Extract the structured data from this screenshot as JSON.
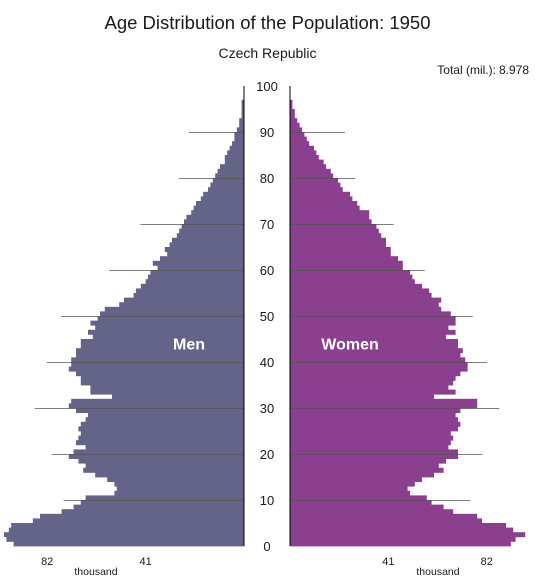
{
  "title": "Age Distribution of the Population: 1950",
  "subtitle": "Czech Republic",
  "total_label": "Total (mil.):",
  "total_value": "8.978",
  "colors": {
    "men": "#646489",
    "women": "#8a3f8f",
    "gridline": "#555555",
    "axis": "#000000",
    "label": "#ffffff"
  },
  "chart_data": {
    "type": "bar",
    "orientation": "horizontal-pyramid",
    "title": "Age Distribution of the Population: 1950",
    "subtitle": "Czech Republic",
    "age_ticks": [
      "0",
      "10",
      "20",
      "30",
      "40",
      "50",
      "60",
      "70",
      "80",
      "90",
      "100"
    ],
    "age_range": [
      0,
      100
    ],
    "value_ticks": [
      "82",
      "41"
    ],
    "value_max": 100,
    "unit_label": "thousand",
    "series": [
      {
        "name": "Men",
        "values": [
          96,
          99,
          100,
          98,
          97,
          88,
          85,
          76,
          71,
          68,
          66,
          54,
          53,
          54,
          57,
          62,
          67,
          66,
          69,
          73,
          71,
          66,
          70,
          69,
          68,
          69,
          68,
          66,
          65,
          70,
          73,
          72,
          55,
          64,
          64,
          68,
          68,
          70,
          73,
          72,
          72,
          70,
          70,
          68,
          68,
          63,
          65,
          62,
          64,
          61,
          60,
          58,
          52,
          50,
          46,
          45,
          43,
          41,
          40,
          39,
          36,
          38,
          35,
          32,
          33,
          31,
          30,
          28,
          27,
          26,
          25,
          24,
          22,
          21,
          20,
          18,
          17,
          15,
          14,
          13,
          12,
          11,
          10,
          8,
          8,
          7,
          6,
          5,
          4,
          4,
          3,
          2,
          2,
          1,
          1,
          1,
          1,
          0,
          0,
          0,
          0
        ]
      },
      {
        "name": "Women",
        "values": [
          92,
          94,
          98,
          93,
          90,
          80,
          78,
          68,
          64,
          59,
          57,
          50,
          49,
          52,
          55,
          60,
          64,
          62,
          65,
          70,
          70,
          66,
          67,
          68,
          67,
          70,
          71,
          70,
          69,
          71,
          78,
          78,
          60,
          69,
          66,
          68,
          69,
          71,
          74,
          74,
          73,
          71,
          72,
          70,
          70,
          65,
          69,
          66,
          69,
          69,
          67,
          63,
          62,
          63,
          59,
          58,
          55,
          52,
          51,
          50,
          47,
          47,
          45,
          42,
          42,
          40,
          40,
          38,
          37,
          36,
          34,
          33,
          33,
          29,
          28,
          26,
          25,
          22,
          21,
          20,
          18,
          17,
          15,
          14,
          12,
          11,
          10,
          8,
          7,
          6,
          5,
          4,
          3,
          2,
          2,
          1,
          1,
          0,
          0,
          0,
          0
        ]
      }
    ],
    "grid": true
  }
}
